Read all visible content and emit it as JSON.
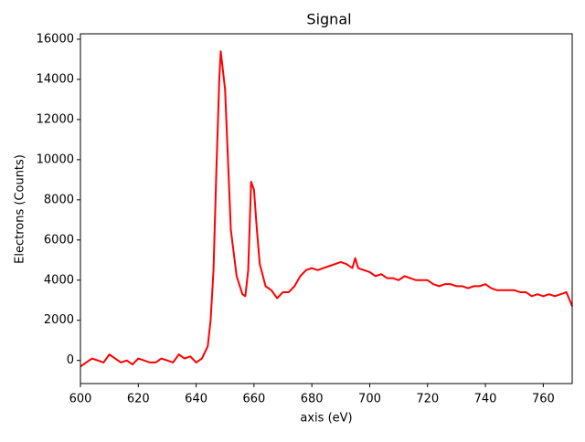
{
  "chart_data": {
    "type": "line",
    "title": "Signal",
    "x_label": "axis (eV)",
    "y_label": "Electrons (Counts)",
    "color": "#ff0000",
    "x": [
      600,
      602,
      604,
      606,
      608,
      610,
      612,
      614,
      616,
      618,
      620,
      622,
      624,
      626,
      628,
      630,
      632,
      634,
      636,
      638,
      640,
      642,
      644,
      645,
      646,
      647,
      648,
      648.5,
      650,
      652,
      654,
      656,
      657,
      658,
      659,
      660,
      661,
      662,
      664,
      666,
      668,
      670,
      672,
      674,
      676,
      678,
      680,
      682,
      684,
      686,
      688,
      690,
      692,
      694,
      695,
      696,
      698,
      700,
      702,
      704,
      706,
      708,
      710,
      712,
      714,
      716,
      718,
      720,
      722,
      724,
      726,
      728,
      730,
      732,
      734,
      736,
      738,
      740,
      742,
      744,
      746,
      748,
      750,
      752,
      754,
      756,
      758,
      760,
      762,
      764,
      766,
      768,
      770
    ],
    "values": [
      -300,
      -100,
      100,
      0,
      -100,
      300,
      100,
      -100,
      0,
      -200,
      100,
      0,
      -100,
      -100,
      100,
      0,
      -100,
      300,
      100,
      200,
      -100,
      100,
      700,
      2000,
      4500,
      9500,
      14000,
      15400,
      13500,
      6500,
      4200,
      3300,
      3200,
      4500,
      8900,
      8500,
      6500,
      4800,
      3700,
      3500,
      3100,
      3400,
      3400,
      3700,
      4200,
      4500,
      4600,
      4500,
      4600,
      4700,
      4800,
      4900,
      4800,
      4600,
      5100,
      4600,
      4500,
      4400,
      4200,
      4300,
      4100,
      4100,
      4000,
      4200,
      4100,
      4000,
      4000,
      4000,
      3800,
      3700,
      3800,
      3800,
      3700,
      3700,
      3600,
      3700,
      3700,
      3800,
      3600,
      3500,
      3500,
      3500,
      3500,
      3400,
      3400,
      3200,
      3300,
      3200,
      3300,
      3200,
      3300,
      3400,
      2700
    ],
    "xlim": [
      600,
      770
    ],
    "ylim": [
      -1150,
      16270
    ],
    "xticks": [
      600,
      620,
      640,
      660,
      680,
      700,
      720,
      740,
      760
    ],
    "yticks": [
      0,
      2000,
      4000,
      6000,
      8000,
      10000,
      12000,
      14000,
      16000
    ]
  }
}
